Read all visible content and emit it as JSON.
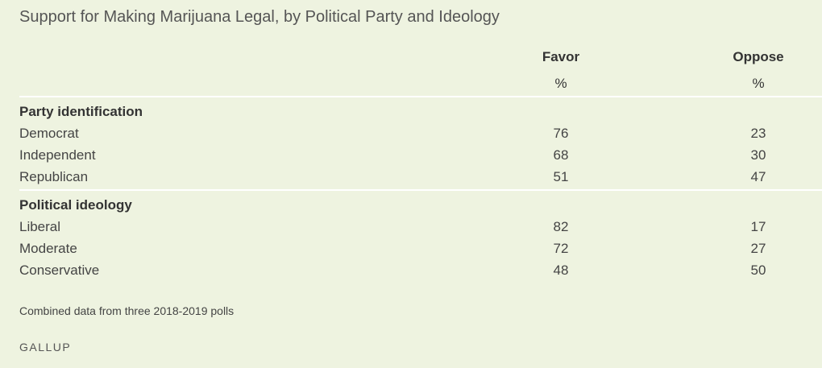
{
  "chart_data": {
    "type": "table",
    "title": "Support for Making Marijuana Legal, by Political Party and Ideology",
    "columns": [
      {
        "label": "Favor",
        "unit": "%"
      },
      {
        "label": "Oppose",
        "unit": "%"
      }
    ],
    "groups": [
      {
        "label": "Party identification",
        "rows": [
          {
            "label": "Democrat",
            "values": [
              76,
              23
            ]
          },
          {
            "label": "Independent",
            "values": [
              68,
              30
            ]
          },
          {
            "label": "Republican",
            "values": [
              51,
              47
            ]
          }
        ]
      },
      {
        "label": "Political ideology",
        "rows": [
          {
            "label": "Liberal",
            "values": [
              82,
              17
            ]
          },
          {
            "label": "Moderate",
            "values": [
              72,
              27
            ]
          },
          {
            "label": "Conservative",
            "values": [
              48,
              50
            ]
          }
        ]
      }
    ],
    "note": "Combined data from three 2018-2019 polls",
    "source": "GALLUP"
  },
  "colors": {
    "background": "#eef3e0",
    "divider": "#ffffff",
    "text": "#333333"
  }
}
